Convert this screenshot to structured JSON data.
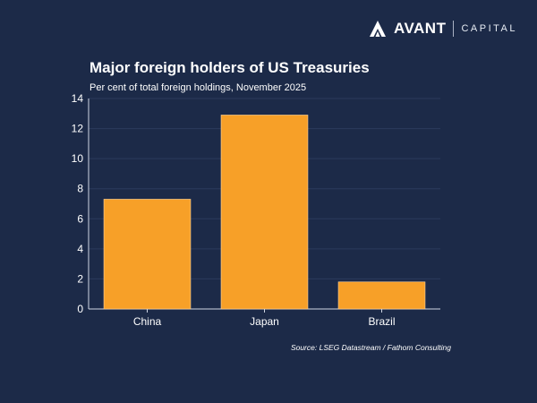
{
  "brand": {
    "name": "AVANT",
    "sub": "CAPITAL",
    "logo_icon": "mountain-logo-icon"
  },
  "colors": {
    "background": "#1c2a48",
    "bar": "#f7a028",
    "grid": "#2b3a5c",
    "text": "#ffffff"
  },
  "chart_data": {
    "type": "bar",
    "title": "Major foreign holders of US Treasuries",
    "subtitle": "Per cent of total foreign holdings, November 2025",
    "xlabel": "",
    "ylabel": "",
    "categories": [
      "China",
      "Japan",
      "Brazil"
    ],
    "values": [
      7.3,
      12.9,
      1.8
    ],
    "ylim": [
      0,
      14
    ],
    "yticks": [
      0,
      2,
      4,
      6,
      8,
      10,
      12,
      14
    ],
    "grid": true,
    "legend": "none"
  },
  "source": "Source: LSEG Datastream / Fathom Consulting"
}
